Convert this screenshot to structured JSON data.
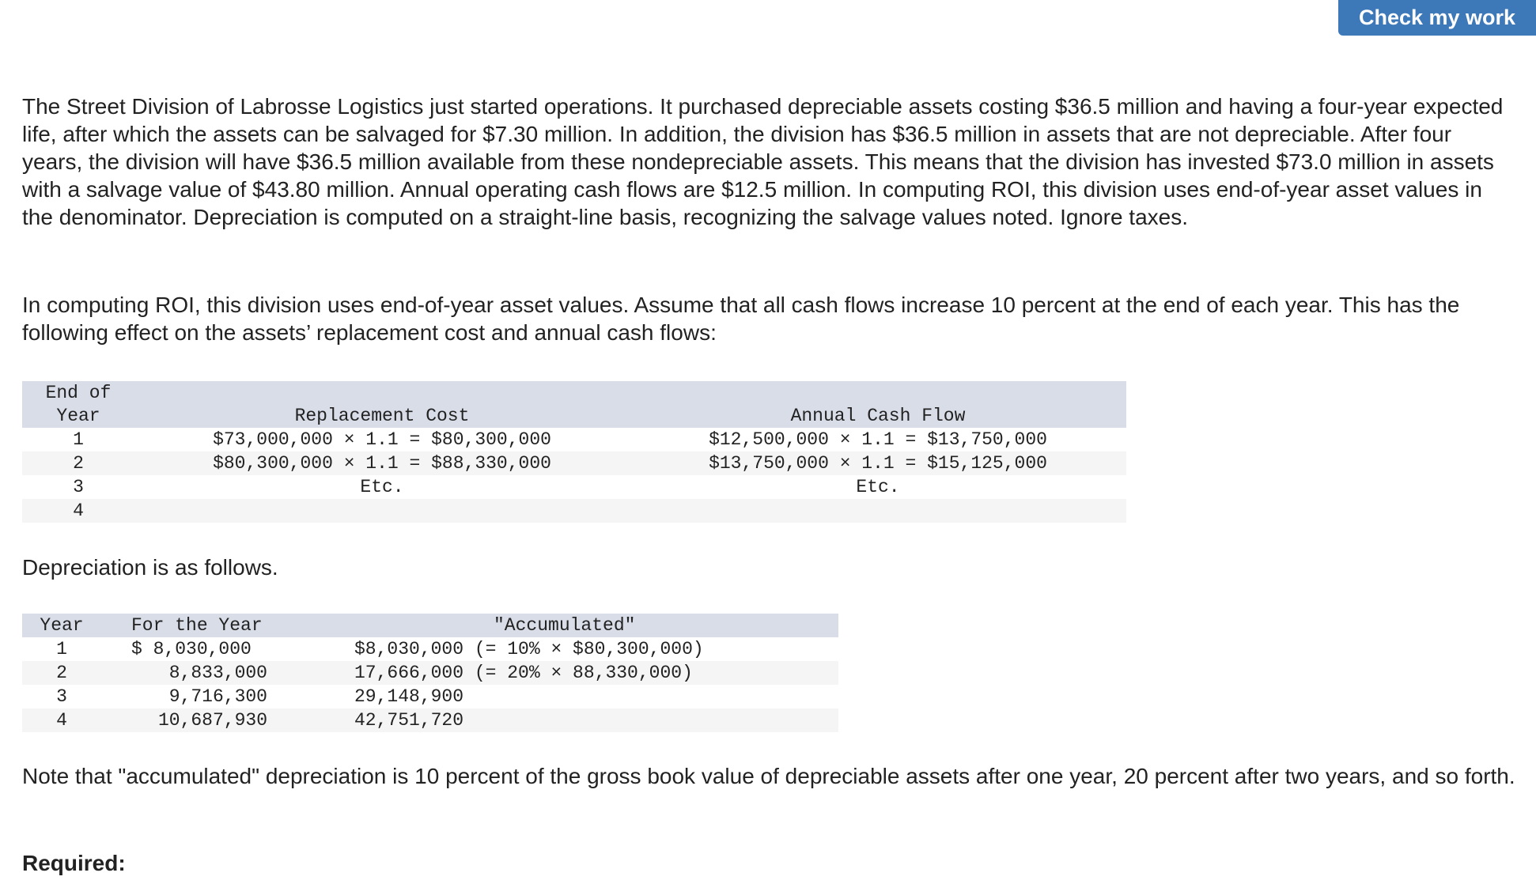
{
  "header": {
    "check_button": "Check my work"
  },
  "paragraphs": {
    "intro": "The Street Division of Labrosse Logistics just started operations. It purchased depreciable assets costing $36.5 million and having a four-year expected life, after which the assets can be salvaged for $7.30 million. In addition, the division has $36.5 million in assets that are not depreciable. After four years, the division will have $36.5 million available from these nondepreciable assets. This means that the division has invested $73.0 million in assets with a salvage value of $43.80 million. Annual operating cash flows are $12.5 million. In computing ROI, this division uses end-of-year asset values in the denominator. Depreciation is computed on a straight-line basis, recognizing the salvage values noted. Ignore taxes.",
    "inflation": "In computing ROI, this division uses end-of-year asset values. Assume that all cash flows increase 10 percent at the end of each year. This has the following effect on the assets’ replacement cost and annual cash flows:",
    "depreciation_intro": "Depreciation is as follows.",
    "note": "Note that \"accumulated\" depreciation is 10 percent of the gross book value of depreciable assets after one year, 20 percent after two years, and so forth.",
    "required": "Required:"
  },
  "replacement_table": {
    "headers": {
      "year_line1": "End of",
      "year_line2": "Year",
      "replacement": "Replacement Cost",
      "cash_flow": "Annual Cash Flow"
    },
    "rows": [
      {
        "year": "1",
        "replacement": "$73,000,000 × 1.1 = $80,300,000",
        "cash_flow": "$12,500,000 × 1.1 = $13,750,000"
      },
      {
        "year": "2",
        "replacement": "$80,300,000 × 1.1 = $88,330,000",
        "cash_flow": "$13,750,000 × 1.1 = $15,125,000"
      },
      {
        "year": "3",
        "replacement": "Etc.",
        "cash_flow": "Etc."
      },
      {
        "year": "4",
        "replacement": "",
        "cash_flow": ""
      }
    ]
  },
  "depreciation_table": {
    "headers": {
      "year": "Year",
      "for_year": "For the Year",
      "accumulated": "\"Accumulated\""
    },
    "rows": [
      {
        "year": "1",
        "for_year": "$ 8,030,000",
        "accumulated": "$8,030,000 (= 10% × $80,300,000)"
      },
      {
        "year": "2",
        "for_year": "8,833,000",
        "accumulated": "17,666,000 (= 20% × 88,330,000)"
      },
      {
        "year": "3",
        "for_year": "9,716,300",
        "accumulated": "29,148,900"
      },
      {
        "year": "4",
        "for_year": "10,687,930",
        "accumulated": "42,751,720"
      }
    ]
  }
}
